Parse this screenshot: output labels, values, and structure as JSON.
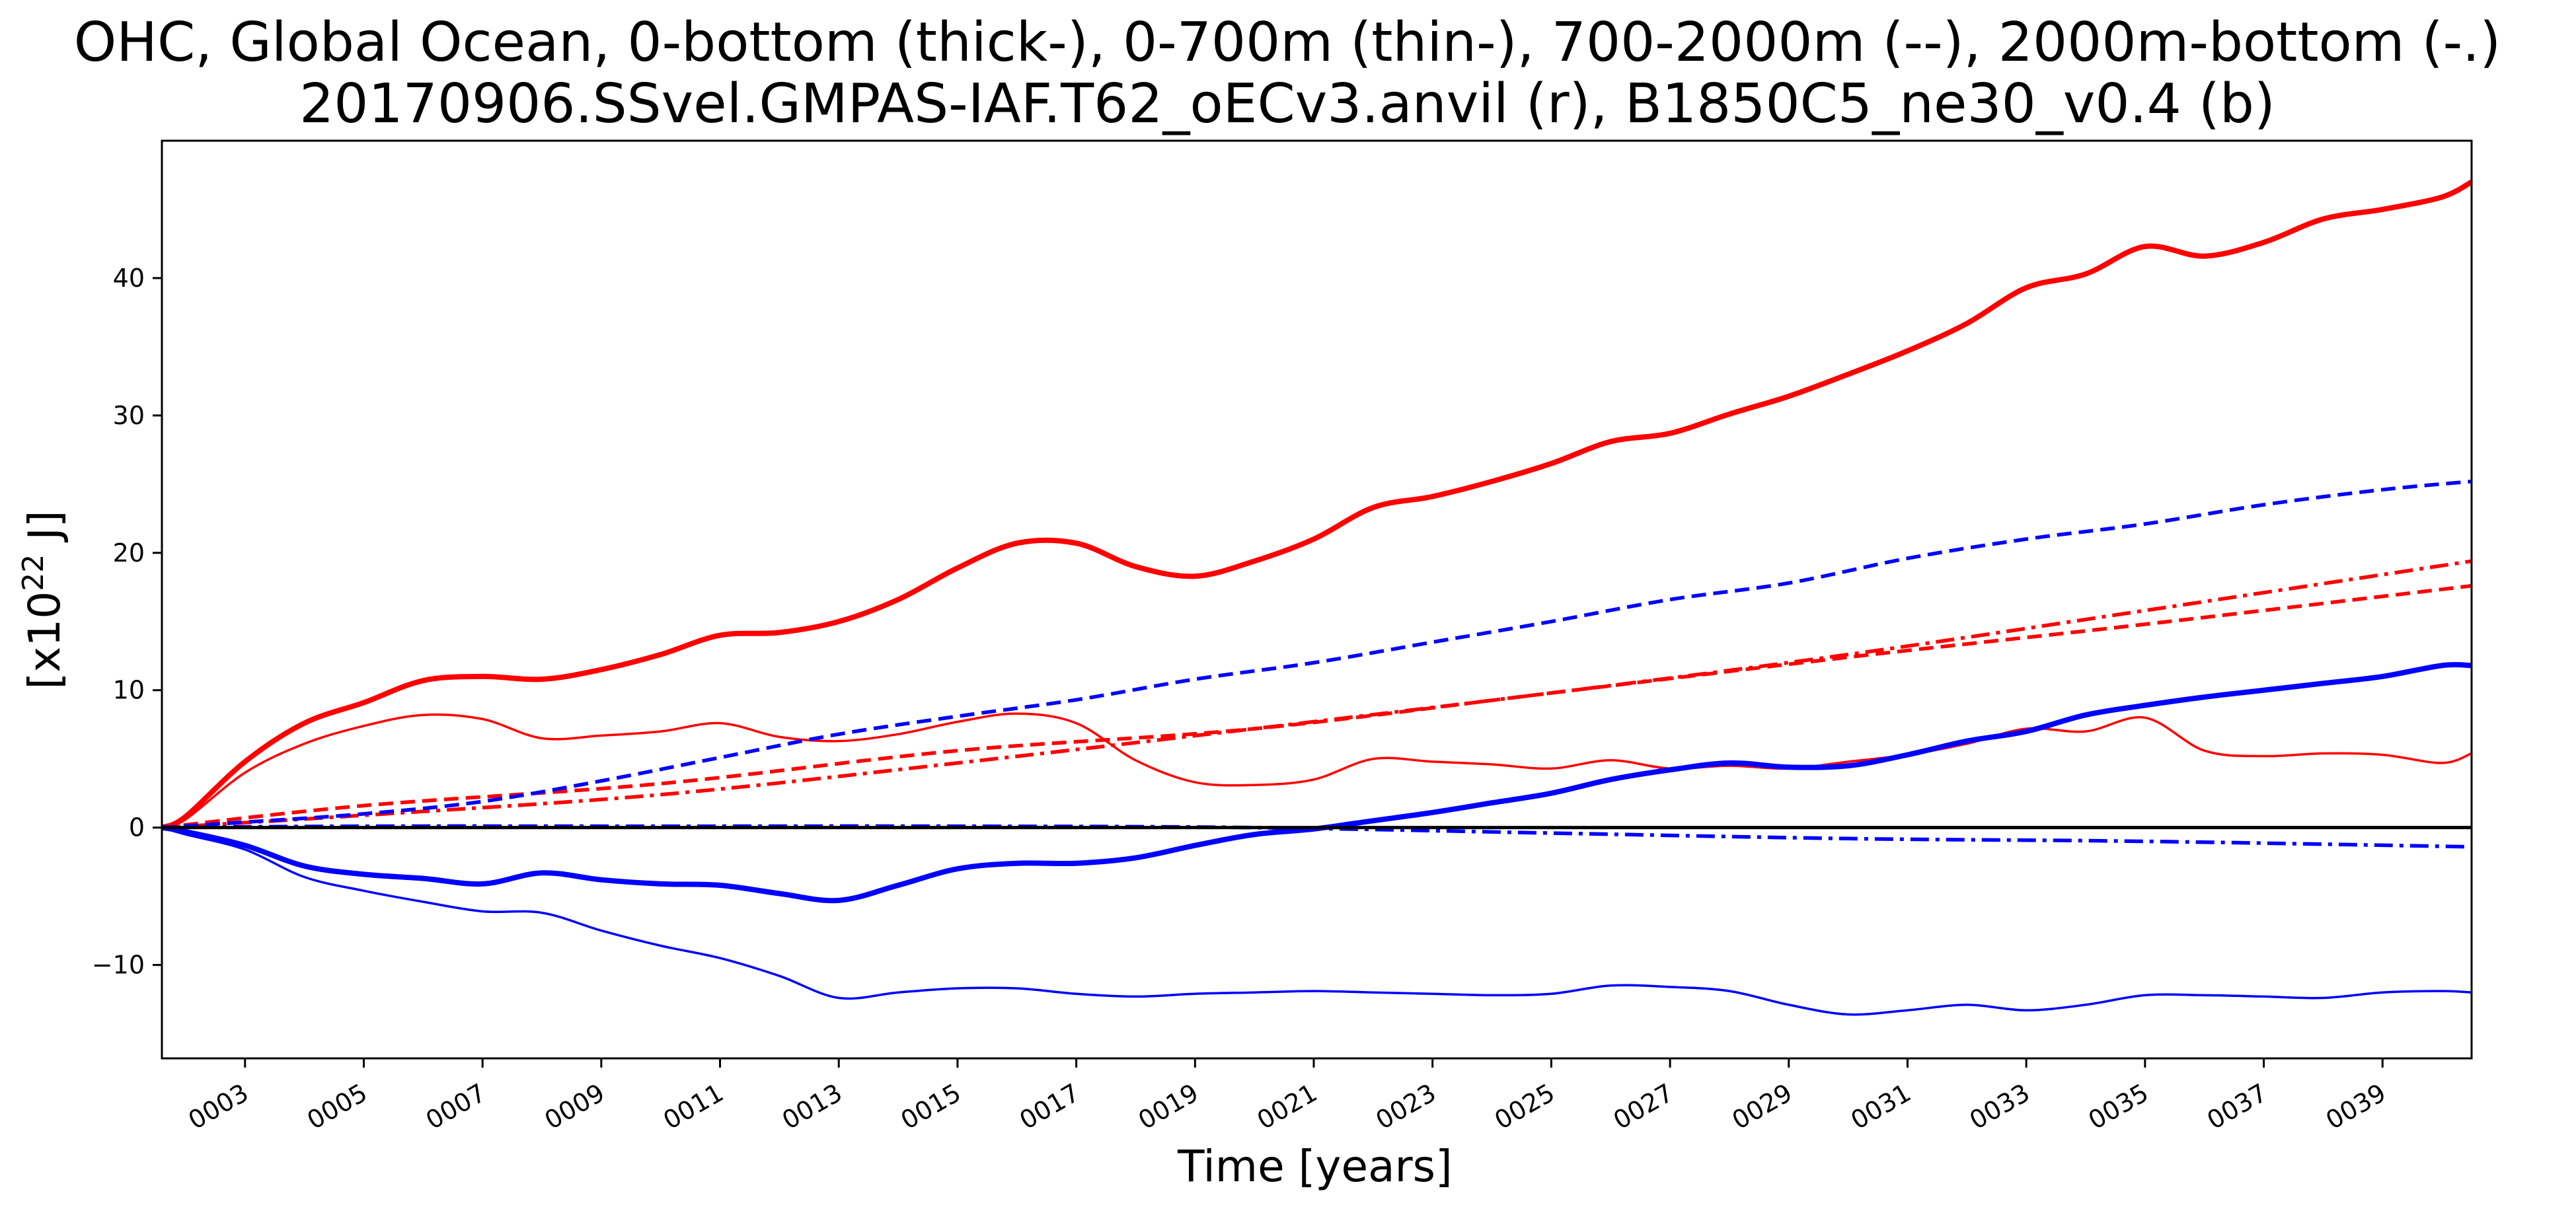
{
  "chart_data": {
    "type": "line",
    "title_line1": "OHC, Global Ocean, 0-bottom (thick-), 0-700m (thin-), 700-2000m (--), 2000m-bottom (-.)",
    "title_line2": "20170906.SSvel.GMPAS-IAF.T62_oECv3.anvil (r), B1850C5_ne30_v0.4 (b)",
    "xlabel": "Time [years]",
    "ylabel_base": "[x10",
    "ylabel_exp": "22",
    "ylabel_unit": " J]",
    "xlim": [
      1.6,
      40.5
    ],
    "ylim": [
      -16.8,
      50
    ],
    "xticks": [
      {
        "value": 3,
        "label": "0003"
      },
      {
        "value": 5,
        "label": "0005"
      },
      {
        "value": 7,
        "label": "0007"
      },
      {
        "value": 9,
        "label": "0009"
      },
      {
        "value": 11,
        "label": "0011"
      },
      {
        "value": 13,
        "label": "0013"
      },
      {
        "value": 15,
        "label": "0015"
      },
      {
        "value": 17,
        "label": "0017"
      },
      {
        "value": 19,
        "label": "0019"
      },
      {
        "value": 21,
        "label": "0021"
      },
      {
        "value": 23,
        "label": "0023"
      },
      {
        "value": 25,
        "label": "0025"
      },
      {
        "value": 27,
        "label": "0027"
      },
      {
        "value": 29,
        "label": "0029"
      },
      {
        "value": 31,
        "label": "0031"
      },
      {
        "value": 33,
        "label": "0033"
      },
      {
        "value": 35,
        "label": "0035"
      },
      {
        "value": 37,
        "label": "0037"
      },
      {
        "value": 39,
        "label": "0039"
      }
    ],
    "yticks": [
      {
        "value": -10,
        "label": "−10"
      },
      {
        "value": 0,
        "label": "0"
      },
      {
        "value": 10,
        "label": "10"
      },
      {
        "value": 20,
        "label": "20"
      },
      {
        "value": 30,
        "label": "30"
      },
      {
        "value": 40,
        "label": "40"
      }
    ],
    "zero_line": true,
    "grid": false,
    "colors": {
      "red": "#ff0000",
      "blue": "#0000ff",
      "axis": "#000000"
    },
    "series": [
      {
        "color": "red",
        "style": "solid-thick",
        "points": [
          [
            1.6,
            0
          ],
          [
            2.0,
            0.8
          ],
          [
            3.0,
            4.8
          ],
          [
            4.0,
            7.6
          ],
          [
            5.0,
            9.1
          ],
          [
            6.0,
            10.7
          ],
          [
            7.0,
            11.0
          ],
          [
            8.0,
            10.8
          ],
          [
            9.0,
            11.5
          ],
          [
            10.0,
            12.6
          ],
          [
            11.0,
            14.0
          ],
          [
            12.0,
            14.2
          ],
          [
            13.0,
            15.0
          ],
          [
            14.0,
            16.6
          ],
          [
            15.0,
            18.9
          ],
          [
            16.0,
            20.7
          ],
          [
            17.0,
            20.7
          ],
          [
            18.0,
            19.0
          ],
          [
            19.0,
            18.3
          ],
          [
            20.0,
            19.4
          ],
          [
            21.0,
            21.0
          ],
          [
            22.0,
            23.3
          ],
          [
            23.0,
            24.1
          ],
          [
            24.0,
            25.2
          ],
          [
            25.0,
            26.5
          ],
          [
            26.0,
            28.1
          ],
          [
            27.0,
            28.7
          ],
          [
            28.0,
            30.1
          ],
          [
            29.0,
            31.4
          ],
          [
            30.0,
            33.0
          ],
          [
            31.0,
            34.7
          ],
          [
            32.0,
            36.7
          ],
          [
            33.0,
            39.3
          ],
          [
            34.0,
            40.3
          ],
          [
            35.0,
            42.3
          ],
          [
            36.0,
            41.6
          ],
          [
            37.0,
            42.6
          ],
          [
            38.0,
            44.3
          ],
          [
            39.0,
            45.0
          ],
          [
            40.0,
            45.9
          ],
          [
            40.5,
            47.0
          ]
        ]
      },
      {
        "color": "red",
        "style": "solid-thin",
        "points": [
          [
            1.6,
            0
          ],
          [
            2.0,
            0.6
          ],
          [
            3.0,
            4.0
          ],
          [
            4.0,
            6.1
          ],
          [
            5.0,
            7.4
          ],
          [
            6.0,
            8.2
          ],
          [
            7.0,
            7.9
          ],
          [
            8.0,
            6.5
          ],
          [
            9.0,
            6.7
          ],
          [
            10.0,
            7.0
          ],
          [
            11.0,
            7.6
          ],
          [
            12.0,
            6.6
          ],
          [
            13.0,
            6.3
          ],
          [
            14.0,
            6.8
          ],
          [
            15.0,
            7.7
          ],
          [
            16.0,
            8.3
          ],
          [
            17.0,
            7.6
          ],
          [
            18.0,
            4.9
          ],
          [
            19.0,
            3.3
          ],
          [
            20.0,
            3.1
          ],
          [
            21.0,
            3.5
          ],
          [
            22.0,
            5.0
          ],
          [
            23.0,
            4.8
          ],
          [
            24.0,
            4.6
          ],
          [
            25.0,
            4.3
          ],
          [
            26.0,
            4.9
          ],
          [
            27.0,
            4.3
          ],
          [
            28.0,
            4.5
          ],
          [
            29.0,
            4.3
          ],
          [
            30.0,
            4.8
          ],
          [
            31.0,
            5.3
          ],
          [
            32.0,
            6.1
          ],
          [
            33.0,
            7.2
          ],
          [
            34.0,
            7.0
          ],
          [
            35.0,
            8.0
          ],
          [
            36.0,
            5.6
          ],
          [
            37.0,
            5.2
          ],
          [
            38.0,
            5.4
          ],
          [
            39.0,
            5.3
          ],
          [
            40.0,
            4.7
          ],
          [
            40.5,
            5.4
          ]
        ]
      },
      {
        "color": "red",
        "style": "dashed",
        "points": [
          [
            1.6,
            0
          ],
          [
            5.0,
            1.6
          ],
          [
            10.0,
            3.2
          ],
          [
            15.0,
            5.6
          ],
          [
            20.0,
            7.2
          ],
          [
            25.0,
            9.8
          ],
          [
            30.0,
            12.4
          ],
          [
            35.0,
            14.8
          ],
          [
            40.5,
            17.6
          ]
        ]
      },
      {
        "color": "red",
        "style": "dashdot",
        "points": [
          [
            1.6,
            0
          ],
          [
            5.0,
            0.9
          ],
          [
            10.0,
            2.4
          ],
          [
            15.0,
            4.7
          ],
          [
            20.0,
            7.2
          ],
          [
            25.0,
            9.8
          ],
          [
            30.0,
            12.6
          ],
          [
            35.0,
            15.8
          ],
          [
            40.5,
            19.4
          ]
        ]
      },
      {
        "color": "blue",
        "style": "solid-thick",
        "points": [
          [
            1.6,
            0
          ],
          [
            2.0,
            -0.3
          ],
          [
            3.0,
            -1.3
          ],
          [
            4.0,
            -2.8
          ],
          [
            5.0,
            -3.4
          ],
          [
            6.0,
            -3.7
          ],
          [
            7.0,
            -4.1
          ],
          [
            8.0,
            -3.3
          ],
          [
            9.0,
            -3.8
          ],
          [
            10.0,
            -4.1
          ],
          [
            11.0,
            -4.2
          ],
          [
            12.0,
            -4.8
          ],
          [
            13.0,
            -5.3
          ],
          [
            14.0,
            -4.2
          ],
          [
            15.0,
            -3.0
          ],
          [
            16.0,
            -2.6
          ],
          [
            17.0,
            -2.6
          ],
          [
            18.0,
            -2.2
          ],
          [
            19.0,
            -1.3
          ],
          [
            20.0,
            -0.5
          ],
          [
            21.0,
            -0.1
          ],
          [
            22.0,
            0.5
          ],
          [
            23.0,
            1.1
          ],
          [
            24.0,
            1.8
          ],
          [
            25.0,
            2.5
          ],
          [
            26.0,
            3.5
          ],
          [
            27.0,
            4.2
          ],
          [
            28.0,
            4.7
          ],
          [
            29.0,
            4.4
          ],
          [
            30.0,
            4.5
          ],
          [
            31.0,
            5.3
          ],
          [
            32.0,
            6.3
          ],
          [
            33.0,
            7.0
          ],
          [
            34.0,
            8.2
          ],
          [
            35.0,
            8.9
          ],
          [
            36.0,
            9.5
          ],
          [
            37.0,
            10.0
          ],
          [
            38.0,
            10.5
          ],
          [
            39.0,
            11.0
          ],
          [
            40.0,
            11.8
          ],
          [
            40.5,
            11.8
          ]
        ]
      },
      {
        "color": "blue",
        "style": "solid-thin",
        "points": [
          [
            1.6,
            0
          ],
          [
            2.0,
            -0.5
          ],
          [
            3.0,
            -1.6
          ],
          [
            4.0,
            -3.6
          ],
          [
            5.0,
            -4.6
          ],
          [
            6.0,
            -5.4
          ],
          [
            7.0,
            -6.1
          ],
          [
            8.0,
            -6.2
          ],
          [
            9.0,
            -7.5
          ],
          [
            10.0,
            -8.6
          ],
          [
            11.0,
            -9.5
          ],
          [
            12.0,
            -10.8
          ],
          [
            13.0,
            -12.4
          ],
          [
            14.0,
            -12.0
          ],
          [
            15.0,
            -11.7
          ],
          [
            16.0,
            -11.7
          ],
          [
            17.0,
            -12.1
          ],
          [
            18.0,
            -12.3
          ],
          [
            19.0,
            -12.1
          ],
          [
            20.0,
            -12.0
          ],
          [
            21.0,
            -11.9
          ],
          [
            22.0,
            -12.0
          ],
          [
            23.0,
            -12.1
          ],
          [
            24.0,
            -12.2
          ],
          [
            25.0,
            -12.1
          ],
          [
            26.0,
            -11.5
          ],
          [
            27.0,
            -11.6
          ],
          [
            28.0,
            -11.9
          ],
          [
            29.0,
            -12.9
          ],
          [
            30.0,
            -13.6
          ],
          [
            31.0,
            -13.3
          ],
          [
            32.0,
            -12.9
          ],
          [
            33.0,
            -13.3
          ],
          [
            34.0,
            -12.9
          ],
          [
            35.0,
            -12.2
          ],
          [
            36.0,
            -12.2
          ],
          [
            37.0,
            -12.3
          ],
          [
            38.0,
            -12.4
          ],
          [
            39.0,
            -12.0
          ],
          [
            40.0,
            -11.9
          ],
          [
            40.5,
            -12.0
          ]
        ]
      },
      {
        "color": "blue",
        "style": "dashed",
        "points": [
          [
            1.6,
            0
          ],
          [
            3.0,
            0.4
          ],
          [
            5.0,
            1.0
          ],
          [
            7.0,
            1.9
          ],
          [
            9.0,
            3.4
          ],
          [
            11.0,
            5.1
          ],
          [
            13.0,
            6.8
          ],
          [
            15.0,
            8.1
          ],
          [
            17.0,
            9.3
          ],
          [
            19.0,
            10.8
          ],
          [
            21.0,
            12.0
          ],
          [
            23.0,
            13.5
          ],
          [
            25.0,
            15.0
          ],
          [
            27.0,
            16.6
          ],
          [
            29.0,
            17.8
          ],
          [
            31.0,
            19.6
          ],
          [
            33.0,
            21.0
          ],
          [
            35.0,
            22.1
          ],
          [
            37.0,
            23.5
          ],
          [
            39.0,
            24.6
          ],
          [
            40.5,
            25.2
          ]
        ]
      },
      {
        "color": "blue",
        "style": "dashdot",
        "points": [
          [
            1.6,
            0
          ],
          [
            5.0,
            0.1
          ],
          [
            10.0,
            0.1
          ],
          [
            15.0,
            0.1
          ],
          [
            20.0,
            0
          ],
          [
            25.0,
            -0.4
          ],
          [
            30.0,
            -0.8
          ],
          [
            35.0,
            -1.0
          ],
          [
            40.5,
            -1.4
          ]
        ]
      }
    ]
  }
}
